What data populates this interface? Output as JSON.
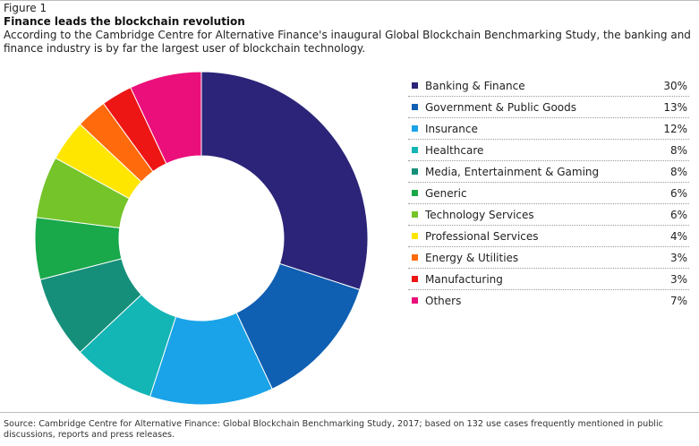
{
  "figure": {
    "label": "Figure 1",
    "title": "Finance leads the blockchain revolution",
    "subtitle": "According to the Cambridge Centre for Alternative Finance's inaugural Global Blockchain Benchmarking Study, the banking and finance industry is by far the largest user of blockchain technology.",
    "source": "Source: Cambridge Centre for Alternative Finance: Global Blockchain Benchmarking Study, 2017; based on 132 use cases frequently mentioned in public discussions, reports and press releases."
  },
  "chart_data": {
    "type": "pie",
    "variant": "donut",
    "legend_position": "right",
    "categories": [
      "Banking & Finance",
      "Government & Public Goods",
      "Insurance",
      "Healthcare",
      "Media, Entertainment & Gaming",
      "Generic",
      "Technology Services",
      "Professional Services",
      "Energy & Utilities",
      "Manufacturing",
      "Others"
    ],
    "values": [
      30,
      13,
      12,
      8,
      8,
      6,
      6,
      4,
      3,
      3,
      7
    ],
    "value_labels": [
      "30%",
      "13%",
      "12%",
      "8%",
      "8%",
      "6%",
      "6%",
      "4%",
      "3%",
      "3%",
      "7%"
    ],
    "colors": [
      "#2b2478",
      "#0f5fb2",
      "#1aa3e8",
      "#14b5b5",
      "#168f7a",
      "#19a84a",
      "#74c42a",
      "#ffe600",
      "#ff6a0d",
      "#ee1515",
      "#ea0f7a"
    ],
    "unit": "%"
  }
}
